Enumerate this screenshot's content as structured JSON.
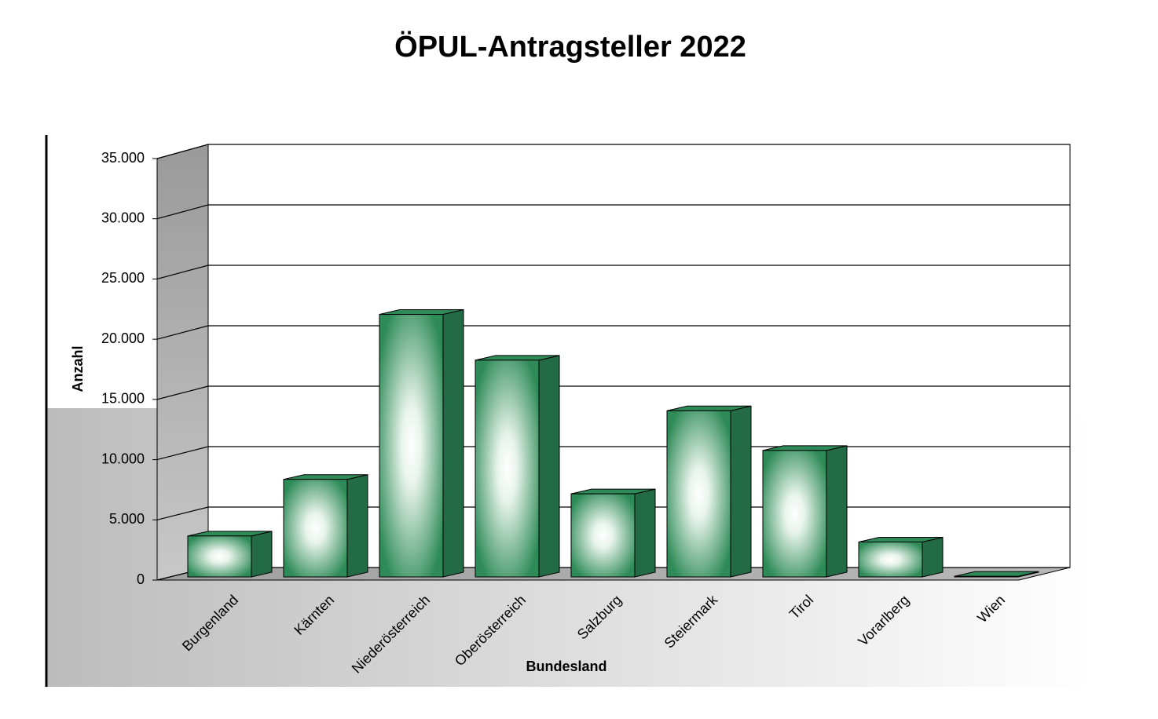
{
  "chart_data": {
    "type": "bar3d",
    "title": "ÖPUL-Antragsteller 2022",
    "x_label": "Bundesland",
    "y_label": "Anzahl",
    "categories": [
      "Burgenland",
      "Kärnten",
      "Niederösterreich",
      "Oberösterreich",
      "Salzburg",
      "Steiermark",
      "Tirol",
      "Vorarlberg",
      "Wien"
    ],
    "values": [
      3400,
      8100,
      21800,
      18000,
      6900,
      13800,
      10500,
      2900,
      50
    ],
    "color": "#2e8b57",
    "ylim": [
      0,
      35000
    ],
    "yticks": [
      {
        "value": 0,
        "label": "0"
      },
      {
        "value": 5000,
        "label": "5.000"
      },
      {
        "value": 10000,
        "label": "10.000"
      },
      {
        "value": 15000,
        "label": "15.000"
      },
      {
        "value": 20000,
        "label": "20.000"
      },
      {
        "value": 25000,
        "label": "25.000"
      },
      {
        "value": 30000,
        "label": "30.000"
      },
      {
        "value": 35000,
        "label": "35.000"
      }
    ],
    "grid": true
  }
}
